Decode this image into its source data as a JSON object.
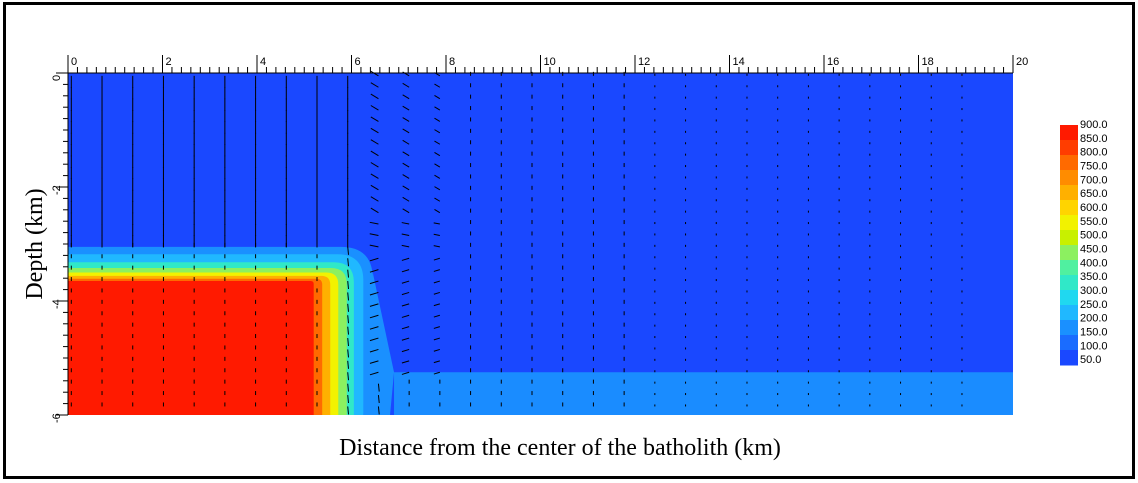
{
  "chart_data": {
    "type": "heatmap",
    "title": "",
    "xlabel": "Distance from the center of the batholith (km)",
    "ylabel": "Depth (km)",
    "xlim": [
      0,
      20
    ],
    "ylim": [
      -6,
      0
    ],
    "x_ticks": [
      "0",
      "2",
      "4",
      "6",
      "8",
      "10",
      "12",
      "14",
      "16",
      "18",
      "20"
    ],
    "y_ticks": [
      "0",
      "-2",
      "-4",
      "-6"
    ],
    "legend": {
      "position": "right",
      "levels": [
        "900.0",
        "850.0",
        "800.0",
        "750.0",
        "700.0",
        "650.0",
        "600.0",
        "550.0",
        "500.0",
        "450.0",
        "400.0",
        "350.0",
        "300.0",
        "250.0",
        "200.0",
        "150.0",
        "100.0",
        "50.0"
      ],
      "colors": [
        "#ff1a00",
        "#ff3d00",
        "#ff6a00",
        "#ff8c00",
        "#ffb000",
        "#ffd400",
        "#f2f200",
        "#c8f000",
        "#8cf060",
        "#50f0a0",
        "#30e8c8",
        "#20d8f0",
        "#20b8ff",
        "#1a90ff",
        "#1a6cff",
        "#1a48ff"
      ]
    },
    "regions": [
      {
        "name": "batholith core",
        "value": 900,
        "x": [
          0,
          5.2
        ],
        "y": [
          -6,
          -3.65
        ]
      },
      {
        "name": "lower layer",
        "value": 125,
        "x": [
          6.9,
          20
        ],
        "y": [
          -6,
          -5.25
        ]
      },
      {
        "name": "background",
        "value": 75,
        "x": [
          0,
          20
        ],
        "y": [
          -6,
          0
        ]
      }
    ],
    "vector_field": "fluid flow vectors",
    "colors": {
      "background": "#1a48ff",
      "lower_layer": "#1a8cff",
      "core": "#ff1a00"
    }
  }
}
